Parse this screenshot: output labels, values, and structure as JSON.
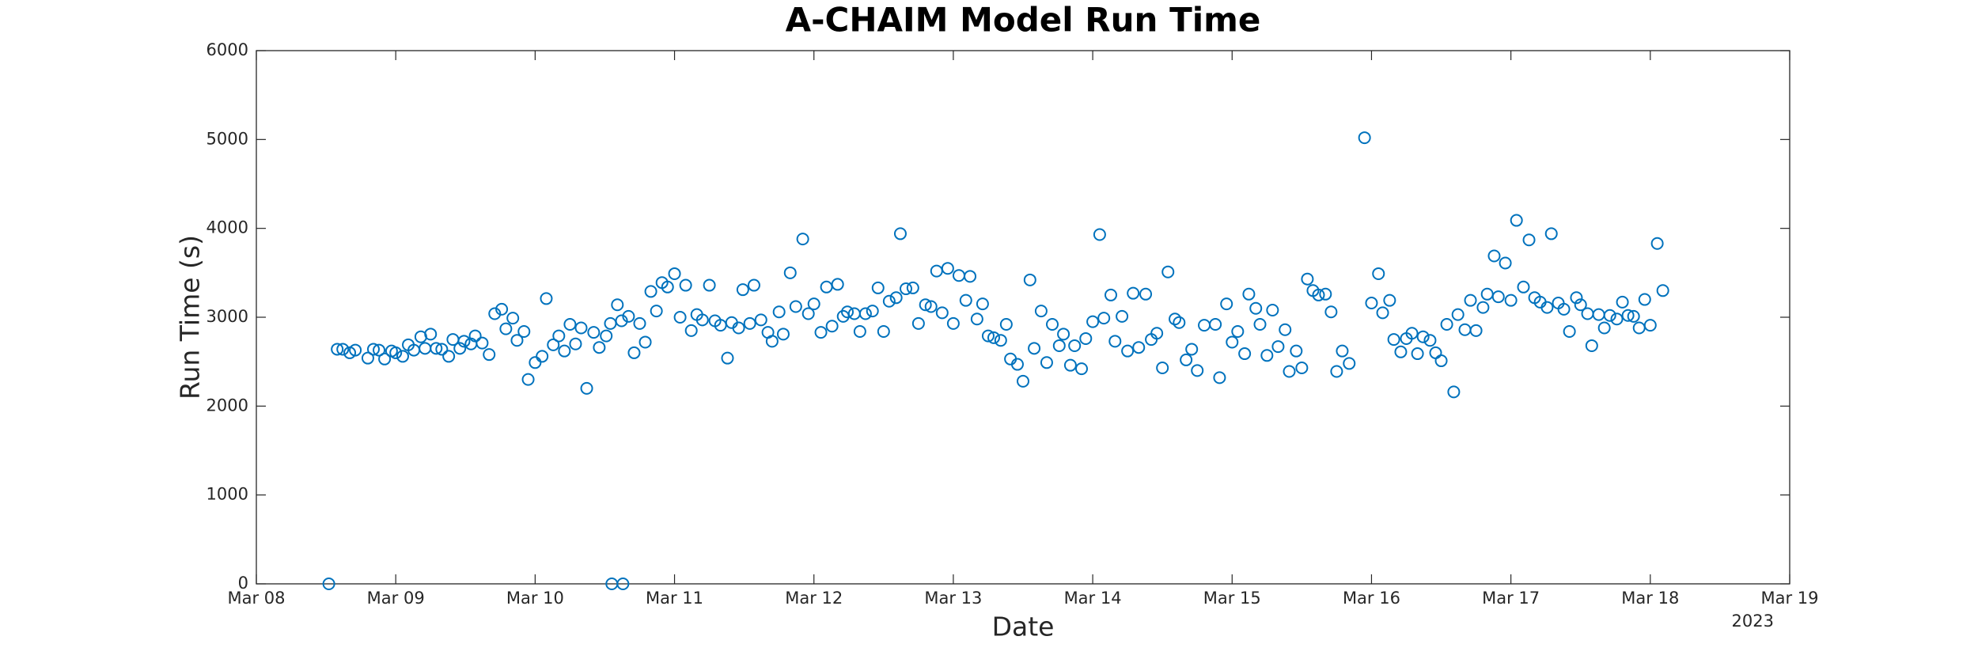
{
  "chart_data": {
    "type": "scatter",
    "title": "A-CHAIM Model Run Time",
    "xlabel": "Date",
    "ylabel": "Run Time (s)",
    "annotation": "2023",
    "color": "#0072bd",
    "grid": false,
    "xlim": [
      8,
      19
    ],
    "xticks": [
      {
        "value": 8,
        "label": "Mar 08"
      },
      {
        "value": 9,
        "label": "Mar 09"
      },
      {
        "value": 10,
        "label": "Mar 10"
      },
      {
        "value": 11,
        "label": "Mar 11"
      },
      {
        "value": 12,
        "label": "Mar 12"
      },
      {
        "value": 13,
        "label": "Mar 13"
      },
      {
        "value": 14,
        "label": "Mar 14"
      },
      {
        "value": 15,
        "label": "Mar 15"
      },
      {
        "value": 16,
        "label": "Mar 16"
      },
      {
        "value": 17,
        "label": "Mar 17"
      },
      {
        "value": 18,
        "label": "Mar 18"
      },
      {
        "value": 19,
        "label": "Mar 19"
      }
    ],
    "ylim": [
      0,
      6000
    ],
    "yticks": [
      0,
      1000,
      2000,
      3000,
      4000,
      5000,
      6000
    ],
    "x": [
      8.52,
      8.58,
      8.62,
      8.67,
      8.71,
      8.8,
      8.84,
      8.88,
      8.92,
      8.97,
      9.0,
      9.05,
      9.09,
      9.13,
      9.18,
      9.21,
      9.25,
      9.29,
      9.33,
      9.38,
      9.41,
      9.46,
      9.49,
      9.54,
      9.57,
      9.62,
      9.67,
      9.71,
      9.76,
      9.79,
      9.84,
      9.87,
      9.92,
      9.95,
      10.0,
      10.05,
      10.08,
      10.13,
      10.17,
      10.21,
      10.25,
      10.29,
      10.33,
      10.37,
      10.42,
      10.46,
      10.51,
      10.54,
      10.55,
      10.59,
      10.62,
      10.63,
      10.67,
      10.71,
      10.75,
      10.79,
      10.83,
      10.87,
      10.91,
      10.95,
      11.0,
      11.04,
      11.08,
      11.12,
      11.16,
      11.2,
      11.25,
      11.29,
      11.33,
      11.38,
      11.41,
      11.46,
      11.49,
      11.54,
      11.57,
      11.62,
      11.67,
      11.7,
      11.75,
      11.78,
      11.83,
      11.87,
      11.92,
      11.96,
      12.0,
      12.05,
      12.09,
      12.13,
      12.17,
      12.21,
      12.24,
      12.29,
      12.33,
      12.37,
      12.42,
      12.46,
      12.5,
      12.54,
      12.59,
      12.62,
      12.66,
      12.71,
      12.75,
      12.8,
      12.84,
      12.88,
      12.92,
      12.96,
      13.0,
      13.04,
      13.09,
      13.12,
      13.17,
      13.21,
      13.25,
      13.29,
      13.34,
      13.38,
      13.41,
      13.46,
      13.5,
      13.55,
      13.58,
      13.63,
      13.67,
      13.71,
      13.76,
      13.79,
      13.84,
      13.87,
      13.92,
      13.95,
      14.0,
      14.05,
      14.08,
      14.13,
      14.16,
      14.21,
      14.25,
      14.29,
      14.33,
      14.38,
      14.42,
      14.46,
      14.5,
      14.54,
      14.59,
      14.62,
      14.67,
      14.71,
      14.75,
      14.8,
      14.88,
      14.91,
      14.96,
      15.0,
      15.04,
      15.09,
      15.12,
      15.17,
      15.2,
      15.25,
      15.29,
      15.33,
      15.38,
      15.41,
      15.46,
      15.5,
      15.54,
      15.58,
      15.62,
      15.67,
      15.71,
      15.75,
      15.79,
      15.84,
      15.95,
      16.0,
      16.05,
      16.08,
      16.13,
      16.16,
      16.21,
      16.25,
      16.29,
      16.33,
      16.37,
      16.42,
      16.46,
      16.5,
      16.54,
      16.59,
      16.62,
      16.67,
      16.71,
      16.75,
      16.8,
      16.83,
      16.88,
      16.91,
      16.96,
      17.0,
      17.04,
      17.09,
      17.13,
      17.17,
      17.21,
      17.26,
      17.29,
      17.34,
      17.38,
      17.42,
      17.47,
      17.5,
      17.55,
      17.58,
      17.63,
      17.67,
      17.71,
      17.76,
      17.8,
      17.84,
      17.88,
      17.92,
      17.96,
      18.0,
      18.05,
      18.09
    ],
    "values": [
      0,
      2640,
      2640,
      2600,
      2630,
      2540,
      2640,
      2630,
      2530,
      2620,
      2600,
      2560,
      2690,
      2630,
      2780,
      2650,
      2810,
      2650,
      2640,
      2560,
      2750,
      2650,
      2730,
      2700,
      2790,
      2710,
      2580,
      3040,
      3090,
      2870,
      2990,
      2740,
      2840,
      2300,
      2490,
      2560,
      3210,
      2690,
      2790,
      2620,
      2920,
      2700,
      2880,
      2200,
      2830,
      2660,
      2790,
      2930,
      0,
      3140,
      2960,
      0,
      3010,
      2600,
      2930,
      2720,
      3290,
      3070,
      3390,
      3340,
      3490,
      3000,
      3360,
      2850,
      3030,
      2970,
      3360,
      2960,
      2910,
      2540,
      2940,
      2880,
      3310,
      2930,
      3360,
      2970,
      2830,
      2730,
      3060,
      2810,
      3500,
      3120,
      3880,
      3040,
      3150,
      2830,
      3340,
      2900,
      3370,
      3010,
      3060,
      3040,
      2840,
      3040,
      3070,
      3330,
      2840,
      3180,
      3220,
      3940,
      3320,
      3330,
      2930,
      3140,
      3120,
      3520,
      3050,
      3550,
      2930,
      3470,
      3190,
      3460,
      2980,
      3150,
      2790,
      2770,
      2740,
      2920,
      2530,
      2470,
      2280,
      3420,
      2650,
      3070,
      2490,
      2920,
      2680,
      2810,
      2460,
      2680,
      2420,
      2760,
      2950,
      3930,
      2990,
      3250,
      2730,
      3010,
      2620,
      3270,
      2660,
      3260,
      2750,
      2820,
      2430,
      3510,
      2980,
      2940,
      2520,
      2640,
      2400,
      2910,
      2920,
      2320,
      3150,
      2720,
      2840,
      2590,
      3260,
      3100,
      2920,
      2570,
      3080,
      2670,
      2860,
      2390,
      2620,
      2430,
      3430,
      3300,
      3250,
      3260,
      3060,
      2390,
      2620,
      2480,
      5020,
      3160,
      3490,
      3050,
      3190,
      2750,
      2610,
      2760,
      2820,
      2590,
      2780,
      2740,
      2600,
      2510,
      2920,
      2160,
      3030,
      2860,
      3190,
      2850,
      3110,
      3260,
      3690,
      3230,
      3610,
      3190,
      4090,
      3340,
      3870,
      3220,
      3170,
      3110,
      3940,
      3160,
      3090,
      2840,
      3220,
      3140,
      3040,
      2680,
      3030,
      2880,
      3020,
      2980,
      3170,
      3020,
      3010,
      2880,
      3200,
      2910,
      3830,
      3300
    ]
  }
}
